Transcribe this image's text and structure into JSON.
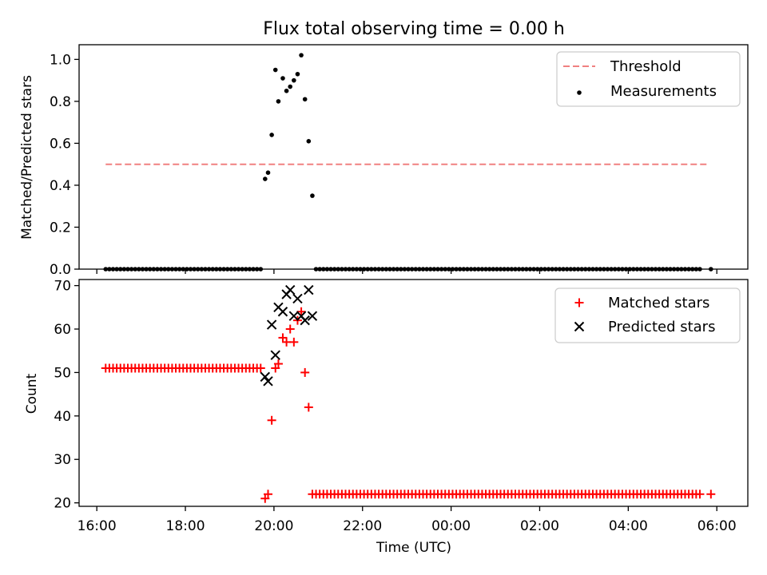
{
  "title": "Flux total observing time = 0.00 h",
  "xlabel": "Time (UTC)",
  "xticks": [
    "16:00",
    "18:00",
    "20:00",
    "22:00",
    "00:00",
    "02:00",
    "04:00",
    "06:00"
  ],
  "colors": {
    "threshold": "#f08080",
    "measurements": "#000000",
    "matched": "#ff0000",
    "predicted": "#000000"
  },
  "chart_data": [
    {
      "type": "scatter",
      "ylabel": "Matched/Predicted stars",
      "xlim": [
        "15:36",
        "30:42"
      ],
      "ylim": [
        0,
        1.07
      ],
      "yticks": [
        0.0,
        0.2,
        0.4,
        0.6,
        0.8,
        1.0
      ],
      "yticks_label": [
        "0.0",
        "0.2",
        "0.4",
        "0.6",
        "0.8",
        "1.0"
      ],
      "legend": {
        "position": "top-right",
        "entries": [
          "Threshold",
          "Measurements"
        ]
      },
      "grid": false,
      "series": [
        {
          "name": "Threshold",
          "type": "line",
          "style": "dashed",
          "x": [
            "16:12",
            "29:48"
          ],
          "y": [
            0.5,
            0.5
          ]
        },
        {
          "name": "Measurements",
          "type": "scatter",
          "zero_run_1": {
            "from": "16:12",
            "to": "19:42",
            "interval_min": 5,
            "value": 0.0
          },
          "peak": {
            "x": [
              "19:48",
              "19:52",
              "19:57",
              "20:02",
              "20:06",
              "20:12",
              "20:17",
              "20:22",
              "20:27",
              "20:32",
              "20:37",
              "20:42",
              "20:47",
              "20:52"
            ],
            "y": [
              0.43,
              0.46,
              0.64,
              0.95,
              0.8,
              0.91,
              0.85,
              0.87,
              0.9,
              0.93,
              1.02,
              0.81,
              0.61,
              0.35
            ]
          },
          "zero_run_2": {
            "from": "20:57",
            "to": "29:37",
            "interval_min": 5,
            "value": 0.0
          },
          "extra": {
            "x": [
              "29:52"
            ],
            "y": [
              0.0
            ]
          }
        }
      ]
    },
    {
      "type": "scatter",
      "ylabel": "Count",
      "xlim": [
        "15:36",
        "30:42"
      ],
      "ylim": [
        19.2,
        71.4
      ],
      "yticks": [
        20,
        30,
        40,
        50,
        60,
        70
      ],
      "yticks_label": [
        "20",
        "30",
        "40",
        "50",
        "60",
        "70"
      ],
      "legend": {
        "position": "top-right",
        "entries": [
          "Matched stars",
          "Predicted stars"
        ]
      },
      "grid": false,
      "series": [
        {
          "name": "Matched stars",
          "marker": "+",
          "early_run": {
            "from": "16:12",
            "to": "19:42",
            "interval_min": 5,
            "value": 51
          },
          "peak": {
            "x": [
              "19:48",
              "19:52",
              "19:57",
              "20:02",
              "20:06",
              "20:12",
              "20:17",
              "20:22",
              "20:27",
              "20:32",
              "20:37",
              "20:42",
              "20:47",
              "20:52"
            ],
            "y": [
              21,
              22,
              39,
              51,
              52,
              58,
              57,
              60,
              57,
              62,
              64,
              50,
              42,
              22
            ]
          },
          "late_run": {
            "from": "20:57",
            "to": "29:37",
            "interval_min": 5,
            "value": 22
          },
          "extra": {
            "x": [
              "29:52"
            ],
            "y": [
              22
            ]
          }
        },
        {
          "name": "Predicted stars",
          "marker": "x",
          "x": [
            "19:48",
            "19:52",
            "19:57",
            "20:02",
            "20:06",
            "20:12",
            "20:17",
            "20:22",
            "20:27",
            "20:32",
            "20:37",
            "20:42",
            "20:47",
            "20:52"
          ],
          "y": [
            49,
            48,
            61,
            54,
            65,
            64,
            68,
            69,
            63,
            67,
            63,
            62,
            69,
            63
          ]
        }
      ]
    }
  ]
}
